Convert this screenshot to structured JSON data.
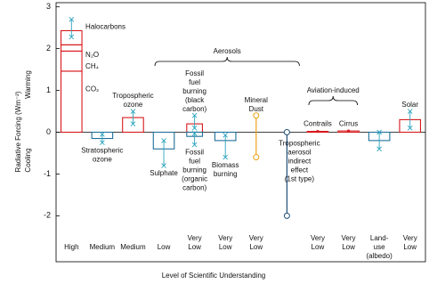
{
  "chart_data": {
    "type": "forcing-bar",
    "ylabel": "Radiative Forcing (Wm⁻²)",
    "xlabel": "Level  of Scientific Understanding",
    "warming_label": "Warming",
    "cooling_label": "Cooling",
    "ylim": [
      -3.1,
      3.1
    ],
    "yticks": [
      -2,
      -1,
      0,
      1,
      2,
      3
    ],
    "categories": [
      [
        "High"
      ],
      [
        "Medium"
      ],
      [
        "Medium"
      ],
      [
        "Low"
      ],
      [
        "Very",
        "Low"
      ],
      [
        "Very",
        "Low"
      ],
      [
        "Very",
        "Low"
      ],
      null,
      [
        "Very",
        "Low"
      ],
      [
        "Very",
        "Low"
      ],
      [
        "Land-",
        "use",
        "(albedo)"
      ],
      [
        "Very",
        "Low"
      ]
    ],
    "positive_color": "#d7191c",
    "negative_color": "#1f6f99",
    "error_color": "#2aa3bd",
    "columns": [
      {
        "segments": [
          {
            "name": "CO₂",
            "value": 1.46
          },
          {
            "name": "CH₄",
            "value": 0.48
          },
          {
            "name": "N₂O",
            "value": 0.15
          },
          {
            "name": "Halocarbons",
            "value": 0.34
          }
        ],
        "range": [
          2.28,
          2.7
        ]
      },
      {
        "label": [
          "Stratospheric",
          "ozone"
        ],
        "value": -0.15,
        "range": [
          -0.25,
          -0.05
        ]
      },
      {
        "label": [
          "Tropospheric",
          "ozone"
        ],
        "value": 0.35,
        "range": [
          0.2,
          0.5
        ]
      },
      {
        "label": [
          "Sulphate"
        ],
        "value": -0.4,
        "range": [
          -0.8,
          -0.2
        ]
      },
      {
        "label": [
          "Fossil",
          "fuel",
          "burning",
          "(black",
          "carbon)"
        ],
        "value": 0.2,
        "range": [
          0.1,
          0.4
        ],
        "second_bar": {
          "label": [
            "Fossil",
            "fuel",
            "burning",
            "(organic",
            "carbon)"
          ],
          "value": -0.1,
          "range": [
            -0.3,
            -0.03
          ]
        }
      },
      {
        "label": [
          "Biomass",
          "burning"
        ],
        "value": -0.2,
        "range": [
          -0.6,
          -0.07
        ]
      },
      {
        "label": [
          "Mineral",
          "Dust"
        ],
        "value": null,
        "range": [
          -0.6,
          0.4
        ],
        "color": "#e8a317"
      },
      {
        "label": [
          "Tropospheric",
          "aerosol",
          "indirect",
          "effect",
          "(1st type)"
        ],
        "value": null,
        "range": [
          -2,
          0
        ],
        "color": "#1f4e79"
      },
      {
        "label": [
          "Contrails"
        ],
        "value": 0.02,
        "range": [
          0.005,
          0.04
        ]
      },
      {
        "label": [
          "Cirrus"
        ],
        "value": 0.03,
        "range": [
          0.02,
          0.04
        ]
      },
      {
        "value": -0.2,
        "range": [
          -0.4,
          0
        ]
      },
      {
        "label": [
          "Solar"
        ],
        "value": 0.3,
        "range": [
          0.1,
          0.5
        ]
      }
    ],
    "annotations": [
      {
        "text": "Aerosols"
      },
      {
        "text": "Aviation-induced"
      }
    ]
  }
}
